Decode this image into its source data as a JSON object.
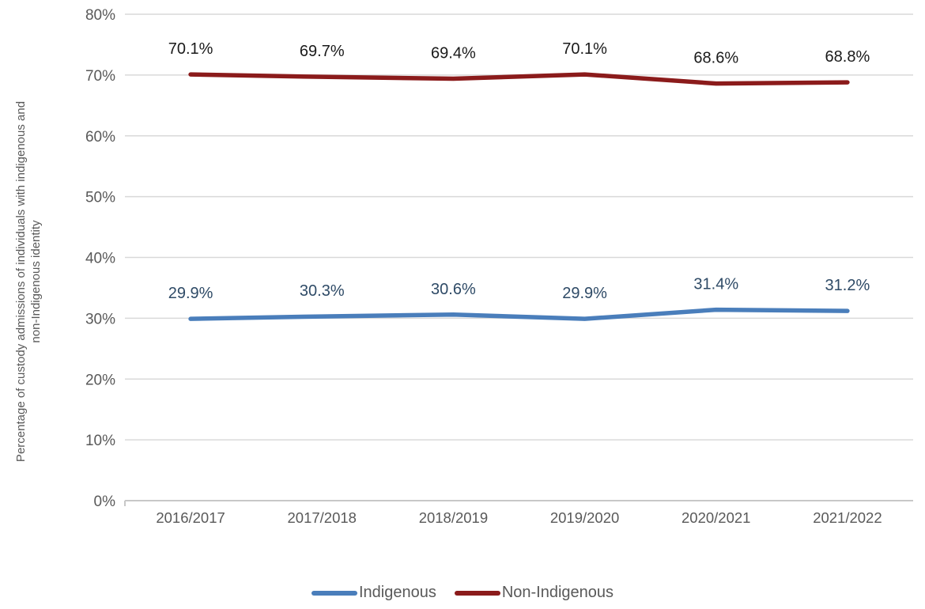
{
  "chart_data": {
    "type": "line",
    "title": "",
    "xlabel": "",
    "ylabel": "Percentage of custody admissions of individuals with indigenous and\nnon-Indigenous identity",
    "categories": [
      "2016/2017",
      "2017/2018",
      "2018/2019",
      "2019/2020",
      "2020/2021",
      "2021/2022"
    ],
    "series": [
      {
        "name": "Indigenous",
        "color": "#4A7EBB",
        "label_color": "#2E4A66",
        "values": [
          29.9,
          30.3,
          30.6,
          29.9,
          31.4,
          31.2
        ],
        "labels": [
          "29.9%",
          "30.3%",
          "30.6%",
          "29.9%",
          "31.4%",
          "31.2%"
        ]
      },
      {
        "name": "Non-Indigenous",
        "color": "#8B1B1B",
        "label_color": "#1A1A1A",
        "values": [
          70.1,
          69.7,
          69.4,
          70.1,
          68.6,
          68.8
        ],
        "labels": [
          "70.1%",
          "69.7%",
          "69.4%",
          "70.1%",
          "68.6%",
          "68.8%"
        ]
      }
    ],
    "ylim": [
      0,
      80
    ],
    "yticks": [
      {
        "value": 0,
        "label": "0%"
      },
      {
        "value": 10,
        "label": "10%"
      },
      {
        "value": 20,
        "label": "20%"
      },
      {
        "value": 30,
        "label": "30%"
      },
      {
        "value": 40,
        "label": "40%"
      },
      {
        "value": 50,
        "label": "50%"
      },
      {
        "value": 60,
        "label": "60%"
      },
      {
        "value": 70,
        "label": "70%"
      },
      {
        "value": 80,
        "label": "80%"
      }
    ],
    "grid": true,
    "legend_position": "bottom",
    "colors": {
      "grid": "#D9D9D9",
      "axis_line": "#C8C8C8",
      "tick_text": "#595959",
      "axis_title_text": "#595959",
      "legend_text": "#595959"
    }
  }
}
